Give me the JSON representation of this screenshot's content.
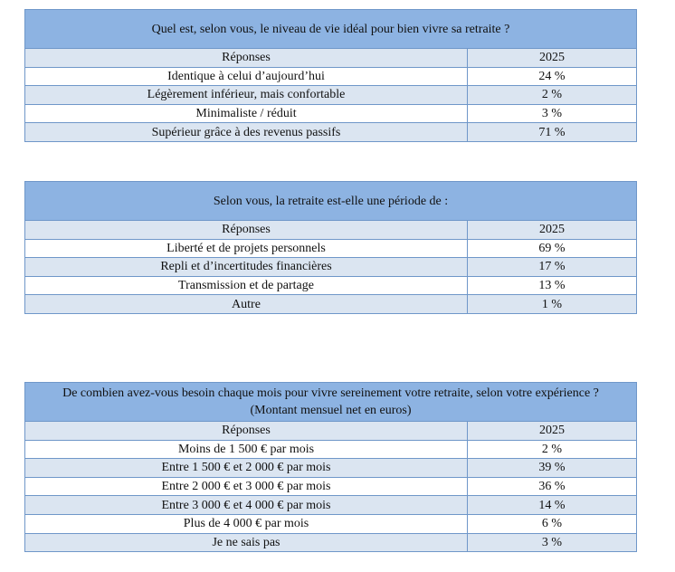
{
  "tables": [
    {
      "title": "Quel est, selon vous, le niveau de vie idéal pour bien vivre sa retraite ?",
      "header": [
        "Réponses",
        "2025"
      ],
      "rows": [
        [
          "Identique à celui d’aujourd’hui",
          "24 %"
        ],
        [
          "Légèrement inférieur, mais confortable",
          "2 %"
        ],
        [
          "Minimaliste / réduit",
          "3 %"
        ],
        [
          "Supérieur grâce à des revenus passifs",
          "71 %"
        ]
      ]
    },
    {
      "title": "Selon vous, la retraite est-elle une période de :",
      "header": [
        "Réponses",
        "2025"
      ],
      "rows": [
        [
          "Liberté et de projets personnels",
          "69 %"
        ],
        [
          "Repli et d’incertitudes financières",
          "17 %"
        ],
        [
          "Transmission et de partage",
          "13 %"
        ],
        [
          "Autre",
          "1 %"
        ]
      ]
    },
    {
      "title": "De combien avez-vous besoin chaque mois pour vivre sereinement votre retraite, selon votre expérience ? (Montant mensuel net en euros)",
      "header": [
        "Réponses",
        "2025"
      ],
      "rows": [
        [
          "Moins de 1 500 € par mois",
          "2 %"
        ],
        [
          "Entre 1 500 € et 2 000 € par mois",
          "39 %"
        ],
        [
          "Entre 2 000 € et 3 000 € par mois",
          "36 %"
        ],
        [
          "Entre 3 000 € et 4 000 € par mois",
          "14 %"
        ],
        [
          "Plus de 4 000 € par mois",
          "6 %"
        ],
        [
          "Je ne sais pas",
          "3 %"
        ]
      ]
    }
  ]
}
